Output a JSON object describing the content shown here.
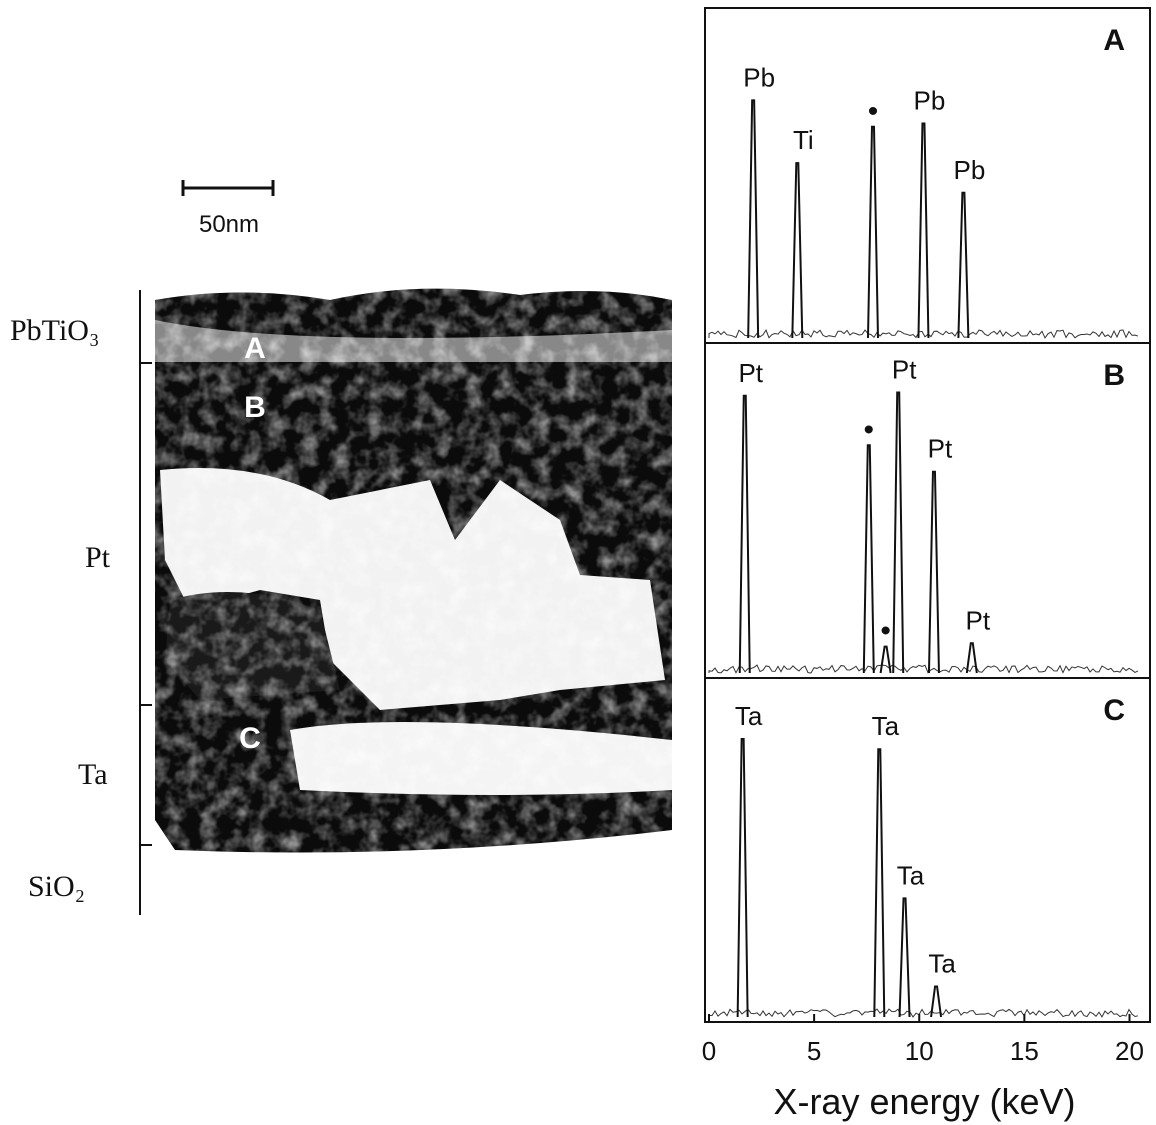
{
  "figure": {
    "scale_bar": "50nm",
    "layers": [
      "PbTiO₃",
      "Pt",
      "Ta",
      "SiO₂"
    ],
    "regions": [
      "A",
      "B",
      "C"
    ]
  },
  "chart_data": [
    {
      "type": "spectrum",
      "title": "A",
      "xlim": [
        0,
        20.5
      ],
      "ylim": [
        0,
        100
      ],
      "peaks": [
        {
          "label": "Pb",
          "energy": 2.1,
          "counts": 72
        },
        {
          "label": "Ti",
          "energy": 4.2,
          "counts": 53
        },
        {
          "label": "•",
          "energy": 7.8,
          "counts": 64
        },
        {
          "label": "Pb",
          "energy": 10.2,
          "counts": 65
        },
        {
          "label": "Pb",
          "energy": 12.1,
          "counts": 44
        }
      ]
    },
    {
      "type": "spectrum",
      "title": "B",
      "xlim": [
        0,
        20.5
      ],
      "ylim": [
        0,
        100
      ],
      "peaks": [
        {
          "label": "Pt",
          "energy": 1.7,
          "counts": 84
        },
        {
          "label": "•",
          "energy": 7.6,
          "counts": 69
        },
        {
          "label": "•",
          "energy": 8.4,
          "counts": 8
        },
        {
          "label": "Pt",
          "energy": 9.0,
          "counts": 85
        },
        {
          "label": "Pt",
          "energy": 10.7,
          "counts": 61
        },
        {
          "label": "Pt",
          "energy": 12.5,
          "counts": 9
        }
      ]
    },
    {
      "type": "spectrum",
      "title": "C",
      "xlim": [
        0,
        20.5
      ],
      "ylim": [
        0,
        100
      ],
      "xlabel": "X-ray energy (keV)",
      "xticks": [
        0,
        5,
        10,
        15,
        20
      ],
      "peaks": [
        {
          "label": "Ta",
          "energy": 1.6,
          "counts": 82
        },
        {
          "label": "Ta",
          "energy": 8.1,
          "counts": 79
        },
        {
          "label": "Ta",
          "energy": 9.3,
          "counts": 35
        },
        {
          "label": "Ta",
          "energy": 10.8,
          "counts": 9
        }
      ]
    }
  ]
}
